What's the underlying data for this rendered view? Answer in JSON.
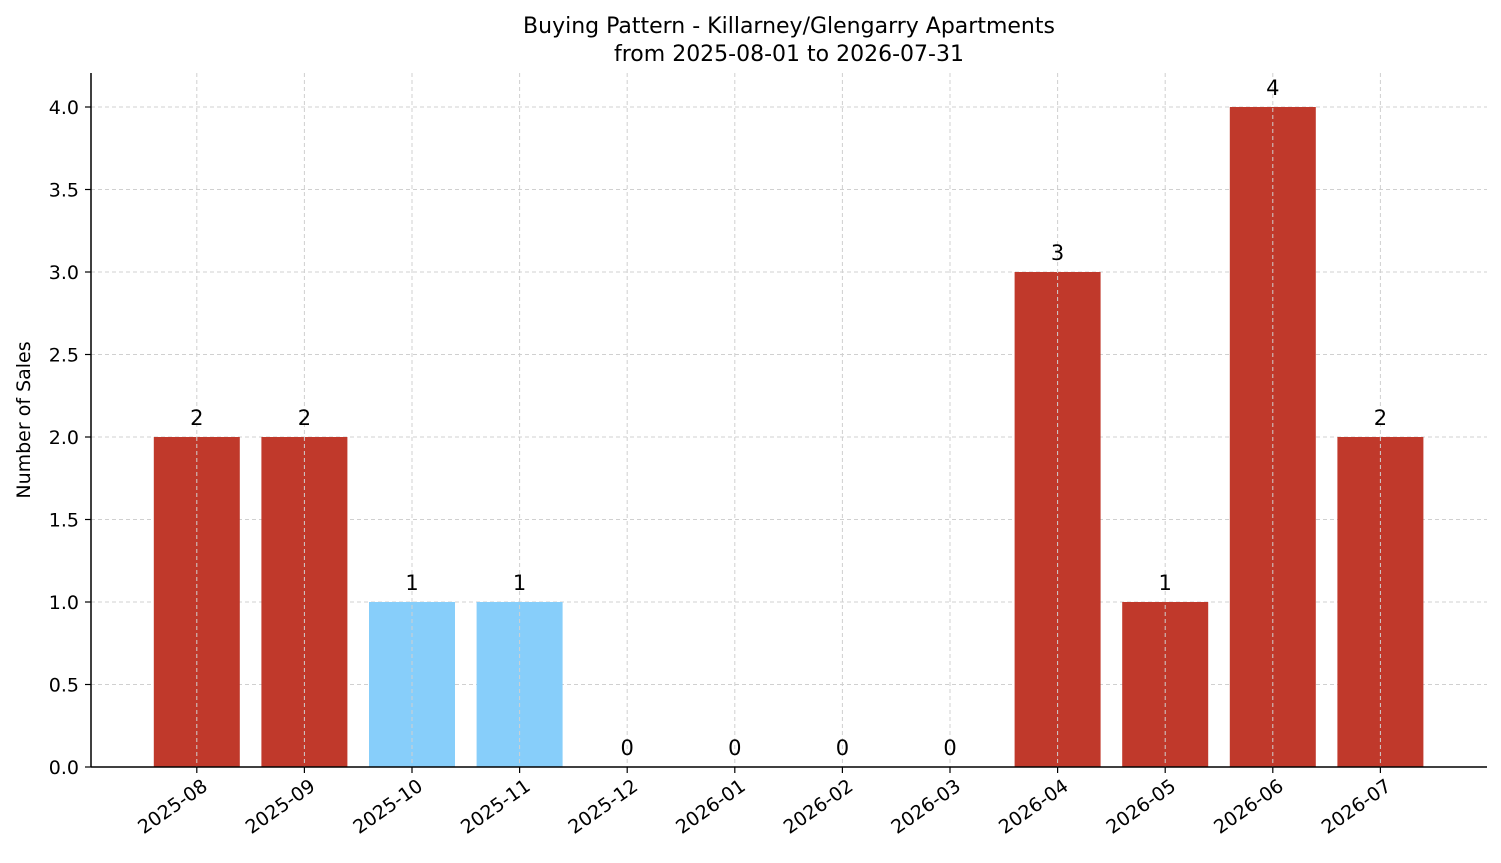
{
  "chart_data": {
    "type": "bar",
    "title": "Buying Pattern - Killarney/Glengarry Apartments",
    "subtitle": "from 2025-08-01 to 2026-07-31",
    "xlabel": "",
    "ylabel": "Number of Sales",
    "categories": [
      "2025-08",
      "2025-09",
      "2025-10",
      "2025-11",
      "2025-12",
      "2026-01",
      "2026-02",
      "2026-03",
      "2026-04",
      "2026-05",
      "2026-06",
      "2026-07"
    ],
    "values": [
      2,
      2,
      1,
      1,
      0,
      0,
      0,
      0,
      3,
      1,
      4,
      2
    ],
    "data_labels": [
      "2",
      "2",
      "1",
      "1",
      "0",
      "0",
      "0",
      "0",
      "3",
      "1",
      "4",
      "2"
    ],
    "bar_colors": [
      "#c0392b",
      "#c0392b",
      "#87cefa",
      "#87cefa",
      "#c0392b",
      "#c0392b",
      "#c0392b",
      "#c0392b",
      "#c0392b",
      "#c0392b",
      "#c0392b",
      "#c0392b"
    ],
    "ylim": [
      0,
      4.2
    ],
    "yticks": [
      0.0,
      0.5,
      1.0,
      1.5,
      2.0,
      2.5,
      3.0,
      3.5,
      4.0
    ],
    "ytick_labels": [
      "0.0",
      "0.5",
      "1.0",
      "1.5",
      "2.0",
      "2.5",
      "3.0",
      "3.5",
      "4.0"
    ],
    "grid": true,
    "legend": "none"
  }
}
